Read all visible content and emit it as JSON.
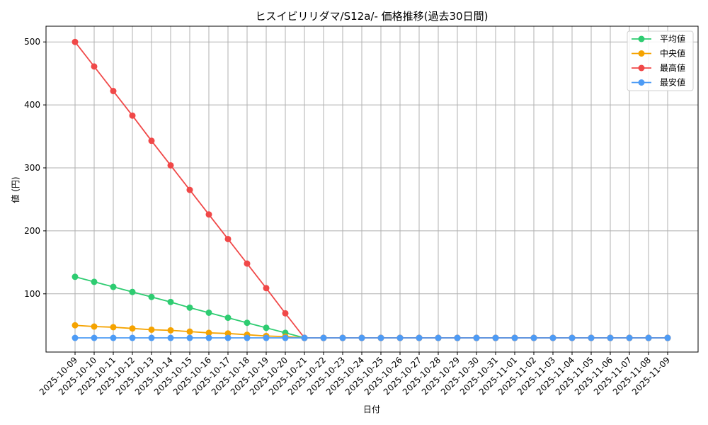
{
  "chart_data": {
    "type": "line",
    "title": "ヒスイビリリダマ/S12a/- 価格推移(過去30日間)",
    "xlabel": "日付",
    "ylabel": "値 (円)",
    "ylim": [
      0,
      525
    ],
    "yticks": [
      100,
      200,
      300,
      400,
      500
    ],
    "grid": true,
    "legend_position": "upper right",
    "x": [
      "2025-10-09",
      "2025-10-10",
      "2025-10-11",
      "2025-10-12",
      "2025-10-13",
      "2025-10-14",
      "2025-10-15",
      "2025-10-16",
      "2025-10-17",
      "2025-10-18",
      "2025-10-19",
      "2025-10-20",
      "2025-10-21",
      "2025-10-22",
      "2025-10-23",
      "2025-10-24",
      "2025-10-25",
      "2025-10-26",
      "2025-10-27",
      "2025-10-28",
      "2025-10-29",
      "2025-10-30",
      "2025-10-31",
      "2025-11-01",
      "2025-11-02",
      "2025-11-03",
      "2025-11-04",
      "2025-11-05",
      "2025-11-06",
      "2025-11-07",
      "2025-11-08",
      "2025-11-09"
    ],
    "series": [
      {
        "name": "平均値",
        "color": "#2ecc71",
        "values": [
          127,
          119,
          111,
          103,
          95,
          87,
          78,
          70,
          62,
          54,
          46,
          38,
          30,
          30,
          30,
          30,
          30,
          30,
          30,
          30,
          30,
          30,
          30,
          30,
          30,
          30,
          30,
          30,
          30,
          30,
          30,
          30
        ]
      },
      {
        "name": "中央値",
        "color": "#f5a300",
        "values": [
          50,
          48,
          47,
          45,
          43,
          42,
          40,
          38,
          37,
          35,
          33,
          32,
          30,
          30,
          30,
          30,
          30,
          30,
          30,
          30,
          30,
          30,
          30,
          30,
          30,
          30,
          30,
          30,
          30,
          30,
          30,
          30
        ]
      },
      {
        "name": "最高値",
        "color": "#f04848",
        "values": [
          500,
          461,
          422,
          383,
          343,
          304,
          265,
          226,
          187,
          148,
          109,
          69,
          30,
          30,
          30,
          30,
          30,
          30,
          30,
          30,
          30,
          30,
          30,
          30,
          30,
          30,
          30,
          30,
          30,
          30,
          30,
          30
        ]
      },
      {
        "name": "最安値",
        "color": "#4d9bf5",
        "values": [
          30,
          30,
          30,
          30,
          30,
          30,
          30,
          30,
          30,
          30,
          30,
          30,
          30,
          30,
          30,
          30,
          30,
          30,
          30,
          30,
          30,
          30,
          30,
          30,
          30,
          30,
          30,
          30,
          30,
          30,
          30,
          30
        ]
      }
    ]
  }
}
